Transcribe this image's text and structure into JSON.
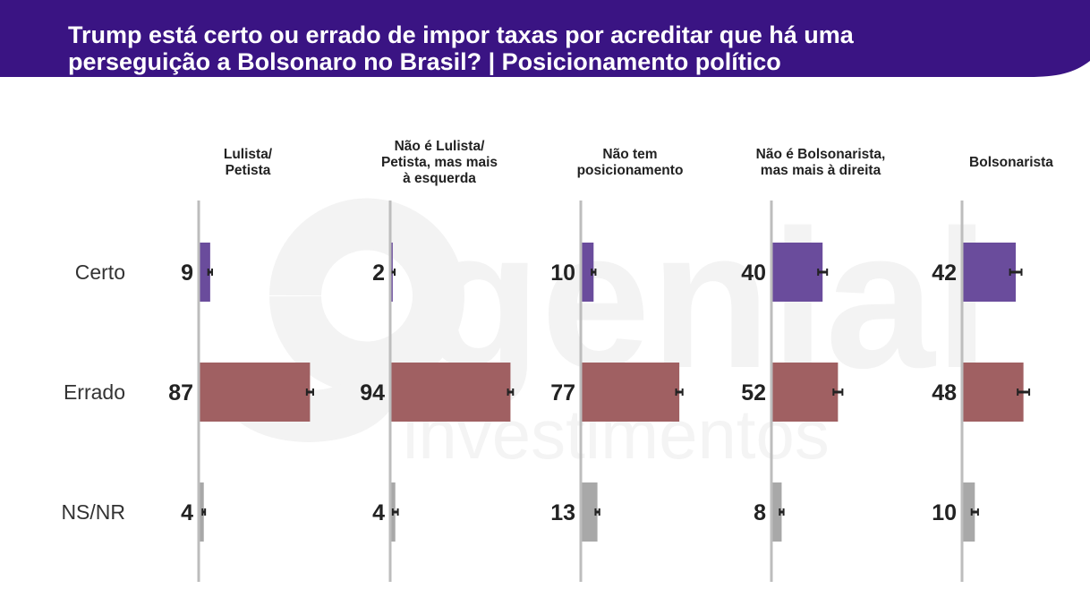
{
  "header": {
    "title_line1": "Trump está certo ou errado de impor taxas por acreditar que há uma",
    "title_line2": "perseguição a Bolsonaro no Brasil? | Posicionamento político",
    "band_color": "#3a1483"
  },
  "watermark": {
    "brand": "genial",
    "tagline": "investimentos"
  },
  "chart_data": {
    "type": "bar",
    "orientation": "horizontal",
    "layout": "faceted",
    "title": "Trump está certo ou errado de impor taxas por acreditar que há uma perseguição a Bolsonaro no Brasil? | Posicionamento político",
    "categories": [
      "Certo",
      "Errado",
      "NS/NR"
    ],
    "category_colors": [
      "#6a4c9c",
      "#a06062",
      "#a8a8a8"
    ],
    "xlim": [
      0,
      100
    ],
    "error_bars": true,
    "facets": [
      {
        "label": "Lulista/\nPetista",
        "values": [
          9,
          87,
          4
        ],
        "errors": [
          1.5,
          2.5,
          1.0
        ]
      },
      {
        "label": "Não é Lulista/\nPetista, mas mais\nà esquerda",
        "values": [
          2,
          94,
          4
        ],
        "errors": [
          1.5,
          2.0,
          2.0
        ]
      },
      {
        "label": "Não tem\nposicionamento",
        "values": [
          10,
          77,
          13
        ],
        "errors": [
          1.5,
          2.5,
          1.5
        ]
      },
      {
        "label": "Não é Bolsonarista,\nmas mais à direita",
        "values": [
          40,
          52,
          8
        ],
        "errors": [
          3.5,
          3.5,
          1.5
        ]
      },
      {
        "label": "Bolsonarista",
        "values": [
          42,
          48,
          10
        ],
        "errors": [
          4.5,
          4.5,
          2.5
        ]
      }
    ]
  }
}
